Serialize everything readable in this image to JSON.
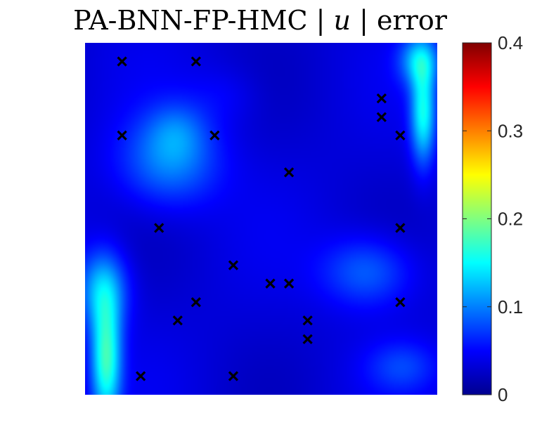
{
  "chart_data": {
    "type": "heatmap",
    "title": "PA-BNN-FP-HMC | u | error",
    "title_parts": [
      "PA-BNN-FP-HMC |",
      "u",
      "| error"
    ],
    "xlim": [
      0,
      1
    ],
    "ylim": [
      0,
      1
    ],
    "colorbar": {
      "range": [
        0,
        0.4
      ],
      "ticks": [
        0,
        0.1,
        0.2,
        0.3,
        0.4
      ],
      "tick_labels": [
        "0",
        "0.1",
        "0.2",
        "0.3",
        "0.4"
      ],
      "colormap": "jet"
    },
    "error_field_peaks": [
      {
        "x": 0.06,
        "y": 0.1,
        "value": 0.17
      },
      {
        "x": 0.05,
        "y": 0.3,
        "value": 0.12
      },
      {
        "x": 0.96,
        "y": 0.8,
        "value": 0.15
      },
      {
        "x": 0.95,
        "y": 0.95,
        "value": 0.12
      },
      {
        "x": 0.24,
        "y": 0.66,
        "value": 0.1
      },
      {
        "x": 0.26,
        "y": 0.75,
        "value": 0.07
      },
      {
        "x": 0.8,
        "y": 0.35,
        "value": 0.09
      },
      {
        "x": 0.9,
        "y": 0.08,
        "value": 0.07
      },
      {
        "x": 0.4,
        "y": 0.85,
        "value": 0.05
      }
    ],
    "base_error": 0.035,
    "series": [
      {
        "marker": "x",
        "color": "#000000",
        "points": [
          [
            0.105,
            0.947
          ],
          [
            0.315,
            0.947
          ],
          [
            0.105,
            0.737
          ],
          [
            0.368,
            0.737
          ],
          [
            0.842,
            0.842
          ],
          [
            0.842,
            0.789
          ],
          [
            0.895,
            0.737
          ],
          [
            0.579,
            0.632
          ],
          [
            0.21,
            0.474
          ],
          [
            0.895,
            0.474
          ],
          [
            0.421,
            0.368
          ],
          [
            0.526,
            0.316
          ],
          [
            0.579,
            0.316
          ],
          [
            0.315,
            0.263
          ],
          [
            0.895,
            0.263
          ],
          [
            0.263,
            0.211
          ],
          [
            0.632,
            0.211
          ],
          [
            0.632,
            0.158
          ],
          [
            0.158,
            0.053
          ],
          [
            0.421,
            0.053
          ]
        ]
      }
    ]
  }
}
